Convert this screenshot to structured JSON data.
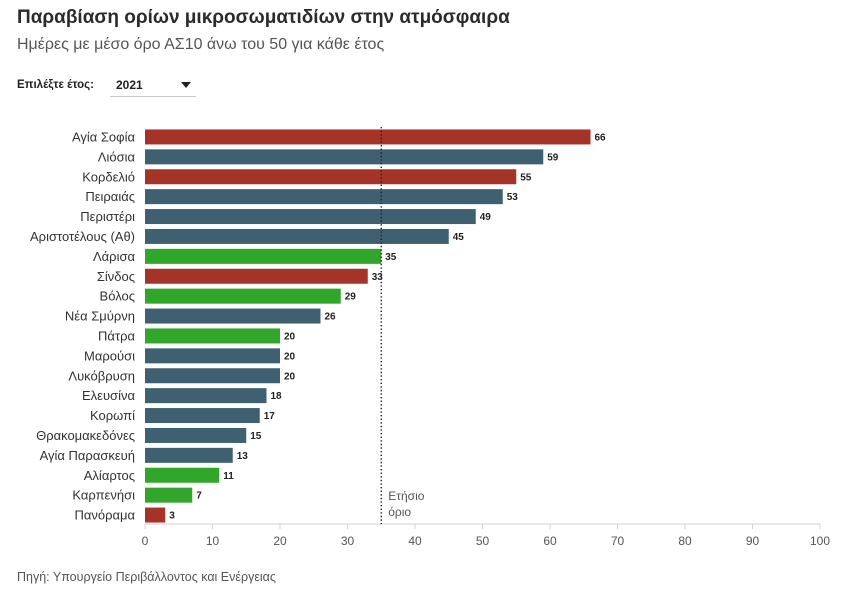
{
  "year_selector": {
    "label": "Επιλέξτε έτος:",
    "value": "2021",
    "icon": "caret-down-icon"
  },
  "chart_data": {
    "type": "bar",
    "orientation": "horizontal",
    "title": "Παραβίαση ορίων μικροσωματιδίων στην ατμόσφαιρα",
    "subtitle": "Ημέρες με μέσο όρο ΑΣ10 άνω του 50 για κάθε έτος",
    "categories": [
      "Αγία Σοφία",
      "Λιόσια",
      "Κορδελιό",
      "Πειραιάς",
      "Περιστέρι",
      "Αριστοτέλους (Αθ)",
      "Λάρισα",
      "Σίνδος",
      "Βόλος",
      "Νέα Σμύρνη",
      "Πάτρα",
      "Μαρούσι",
      "Λυκόβρυση",
      "Ελευσίνα",
      "Κορωπί",
      "Θρακομακεδόνες",
      "Αγία Παρασκευή",
      "Αλίαρτος",
      "Καρπενήσι",
      "Πανόραμα"
    ],
    "values": [
      66,
      59,
      55,
      53,
      49,
      45,
      35,
      33,
      29,
      26,
      20,
      20,
      20,
      18,
      17,
      15,
      13,
      11,
      7,
      3
    ],
    "colors": [
      "#a53428",
      "#3e6070",
      "#a53428",
      "#3e6070",
      "#3e6070",
      "#3e6070",
      "#30a62a",
      "#a53428",
      "#30a62a",
      "#3e6070",
      "#30a62a",
      "#3e6070",
      "#3e6070",
      "#3e6070",
      "#3e6070",
      "#3e6070",
      "#3e6070",
      "#30a62a",
      "#30a62a",
      "#a53428"
    ],
    "xlim": [
      0,
      100
    ],
    "xticks": [
      0,
      10,
      20,
      30,
      40,
      50,
      60,
      70,
      80,
      90,
      100
    ],
    "grid": false,
    "reference_line": {
      "x": 35,
      "style": "dotted",
      "label_lines": [
        "Ετήσιο",
        "όριο"
      ]
    },
    "source": "Πηγή: Υπουργείο Περιβάλλοντος και Ενέργειας"
  }
}
